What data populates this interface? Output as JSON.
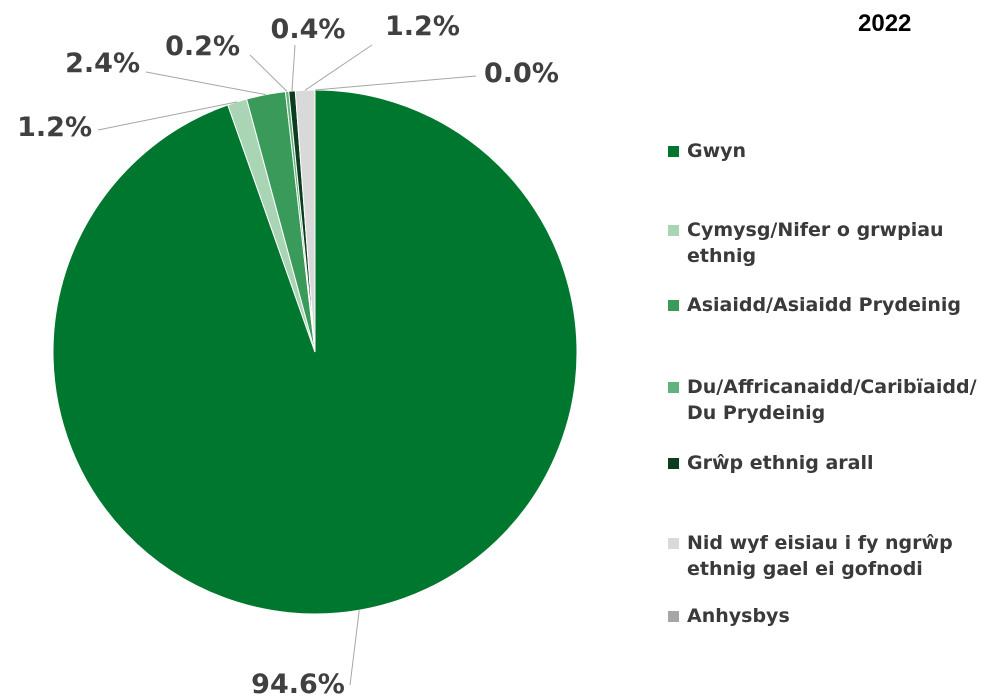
{
  "chart_data": {
    "type": "pie",
    "title": "2022",
    "legend_position": "right",
    "slices": [
      {
        "label": "Gwyn",
        "value": 94.6,
        "display": "94.6%",
        "color": "#00772e"
      },
      {
        "label": "Cymysg/Nifer o grwpiau ethnig",
        "value": 1.2,
        "display": "1.2%",
        "color": "#a9d5b5"
      },
      {
        "label": "Asiaidd/Asiaidd Prydeinig",
        "value": 2.4,
        "display": "2.4%",
        "color": "#3a9a5a"
      },
      {
        "label": "Du/Affricanaidd/Caribïaidd/ Du Prydeinig",
        "value": 0.2,
        "display": "0.2%",
        "color": "#5fb37c"
      },
      {
        "label": "Grŵp ethnig arall",
        "value": 0.4,
        "display": "0.4%",
        "color": "#0b3d1e"
      },
      {
        "label": "Nid wyf eisiau i fy ngrŵp ethnig gael ei gofnodi",
        "value": 1.2,
        "display": "1.2%",
        "color": "#d9d9d9"
      },
      {
        "label": "Anhysbys",
        "value": 0.0,
        "display": "0.0%",
        "color": "#a6a6a6"
      }
    ]
  }
}
